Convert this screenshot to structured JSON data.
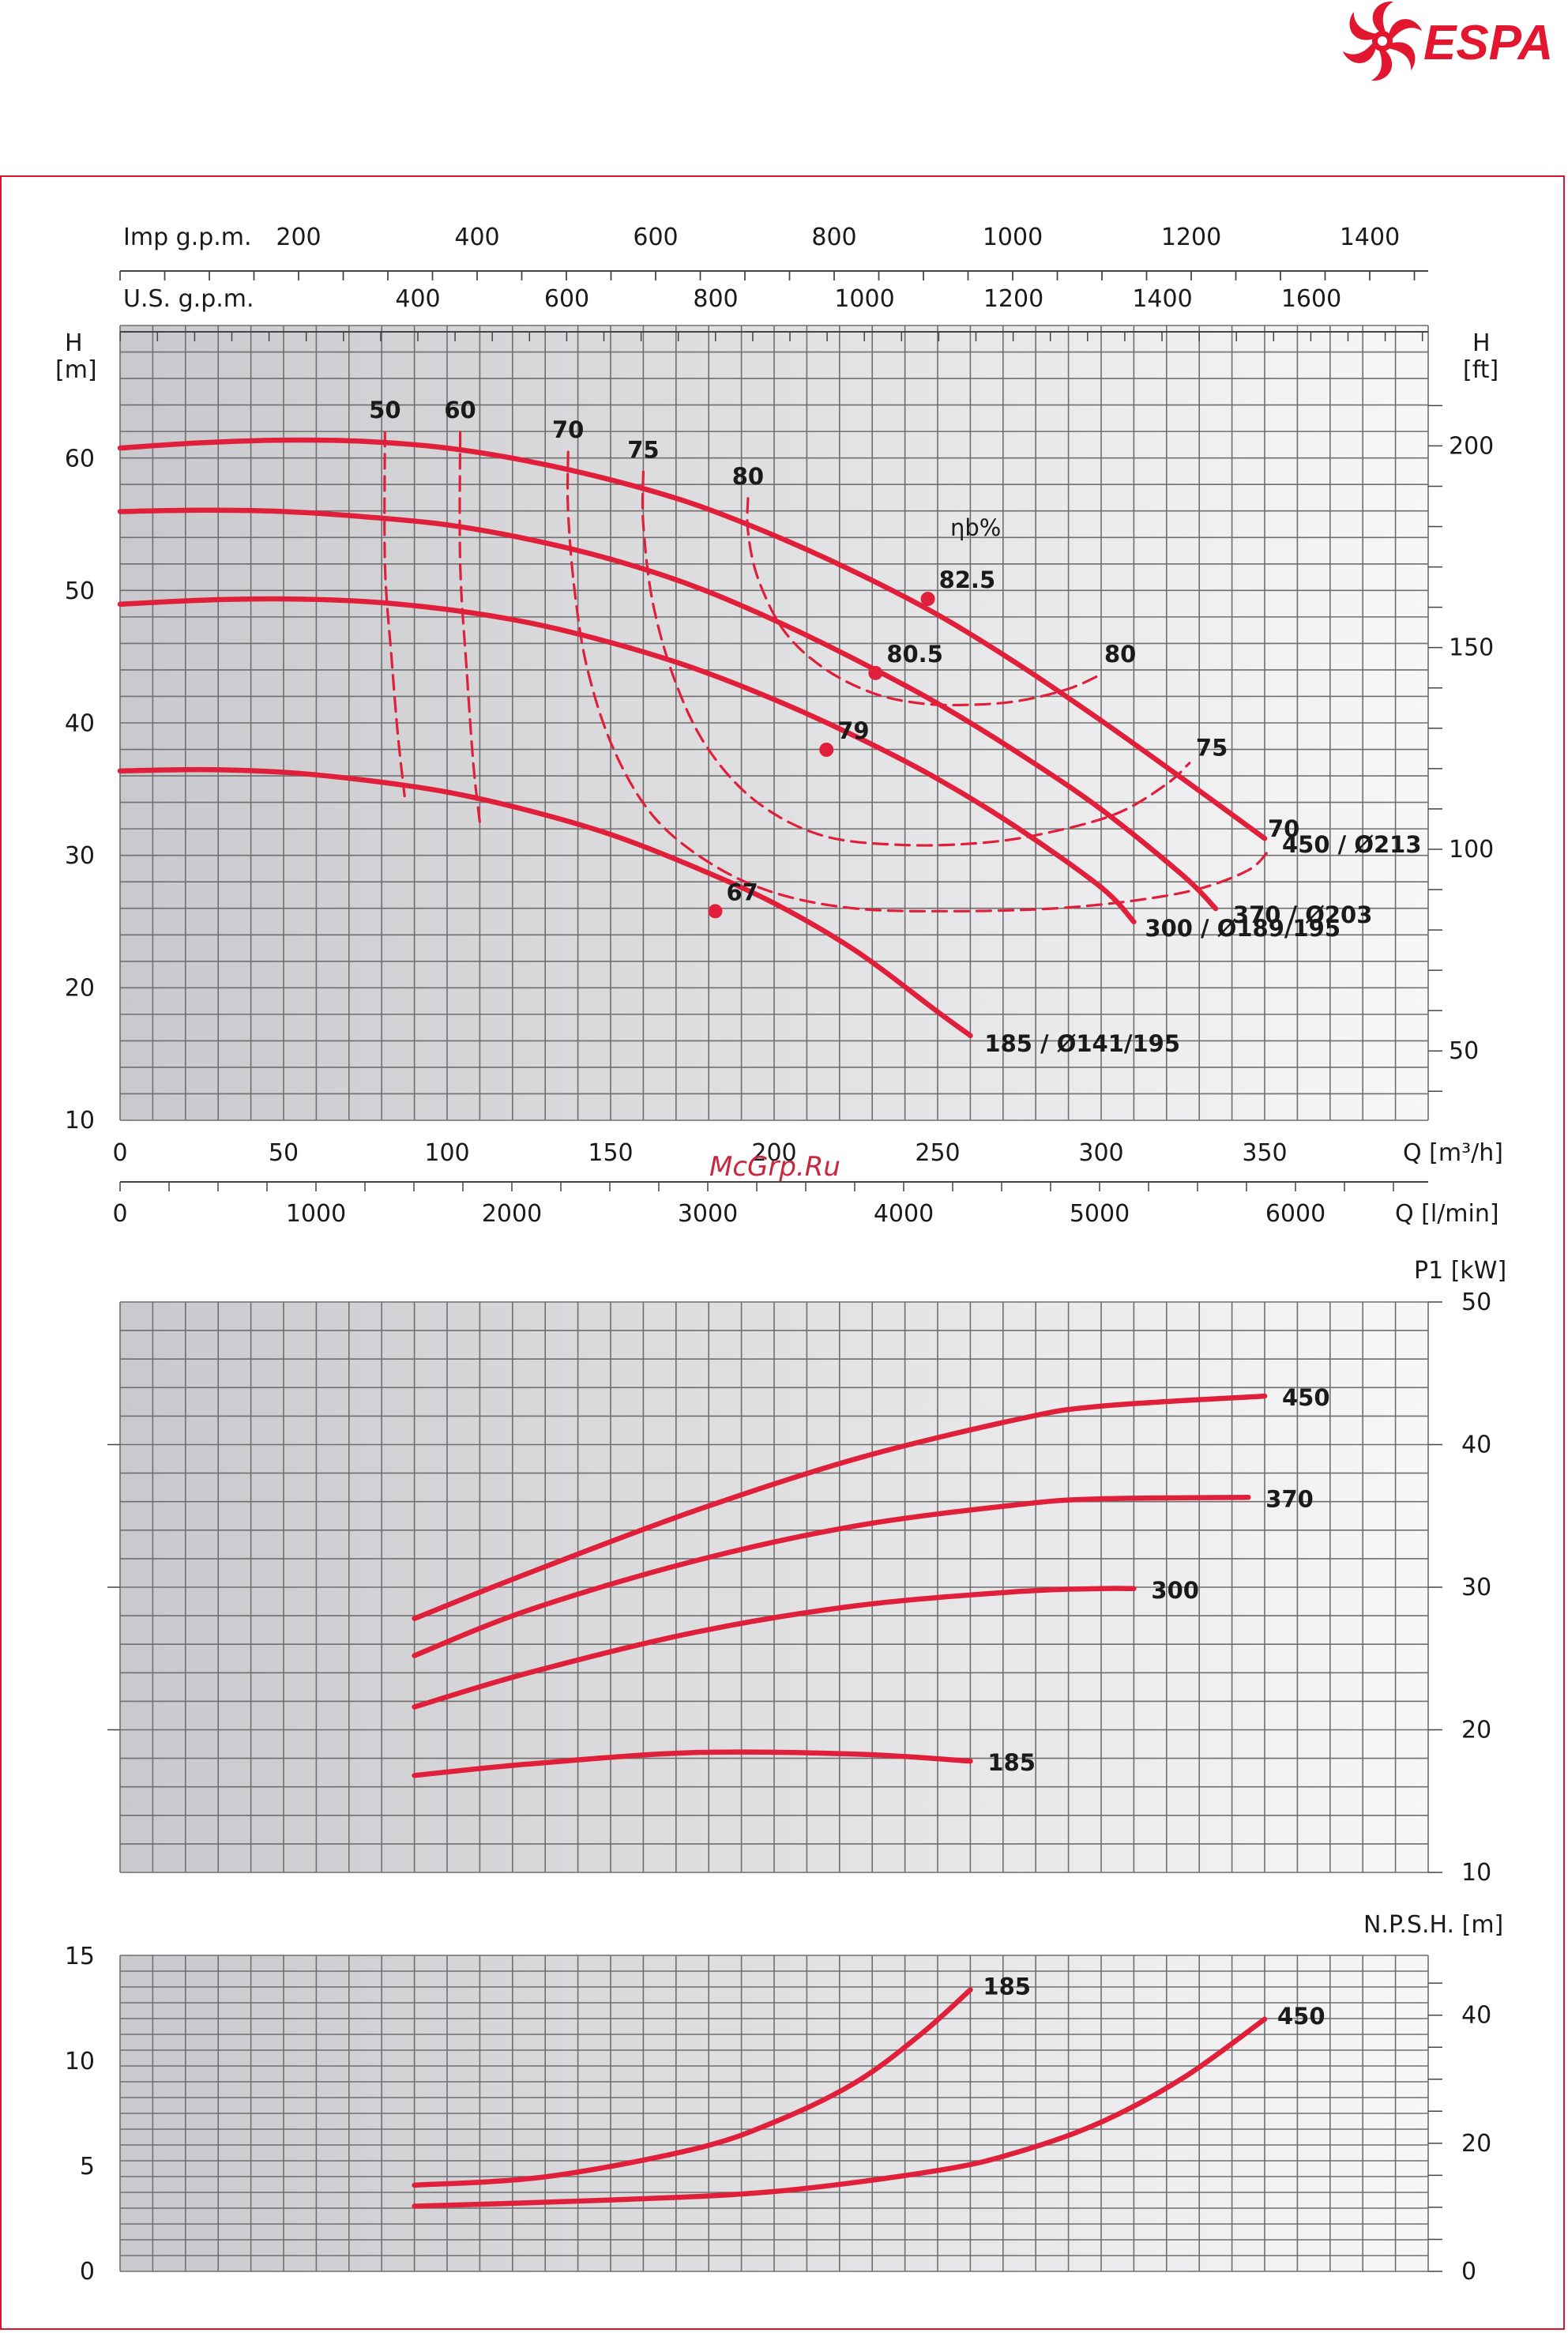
{
  "brand": {
    "name": "ESPA",
    "color": "#e2172f"
  },
  "watermark": "McGrp.Ru",
  "colors": {
    "curve": "#e0203a",
    "grid_line": "#6f6f6f",
    "frame": "#d7152e"
  },
  "chart_data": [
    {
      "type": "line",
      "name": "head",
      "xlabel": "Q [m³/h]",
      "xlim": [
        0,
        400
      ],
      "xticks": [
        "0",
        "50",
        "100",
        "150",
        "200",
        "250",
        "300",
        "350"
      ],
      "ylabel_left": "H [m]",
      "ylim": [
        10,
        65
      ],
      "yticks_left": [
        "10",
        "20",
        "30",
        "40",
        "50",
        "60"
      ],
      "ylabel_right": "H [ft]",
      "yticks_right": [
        "50",
        "100",
        "150",
        "200"
      ],
      "secondary_x_axes": [
        {
          "label": "Imp g.p.m.",
          "ticks": [
            "200",
            "400",
            "600",
            "800",
            "1000",
            "1200",
            "1400"
          ]
        },
        {
          "label": "U.S. g.p.m.",
          "ticks": [
            "400",
            "600",
            "800",
            "1000",
            "1200",
            "1400",
            "1600"
          ]
        },
        {
          "label": "Q [l/min]",
          "ticks": [
            "0",
            "1000",
            "2000",
            "3000",
            "4000",
            "5000",
            "6000"
          ]
        }
      ],
      "series": [
        {
          "name": "450 / Ø213",
          "x": [
            0,
            25,
            50,
            75,
            100,
            125,
            150,
            175,
            200,
            225,
            250,
            275,
            300,
            325,
            350
          ],
          "y": [
            60.8,
            61.2,
            61.4,
            61.3,
            60.8,
            59.8,
            58.4,
            56.6,
            54.2,
            51.4,
            48.2,
            44.4,
            40.2,
            35.8,
            31.3
          ]
        },
        {
          "name": "370 / Ø203",
          "x": [
            0,
            25,
            50,
            75,
            100,
            125,
            150,
            175,
            200,
            225,
            250,
            275,
            300,
            325,
            335
          ],
          "y": [
            56.0,
            56.1,
            56.0,
            55.6,
            55.0,
            53.9,
            52.4,
            50.4,
            47.8,
            44.8,
            41.5,
            37.7,
            33.5,
            28.5,
            26.0
          ]
        },
        {
          "name": "300 / Ø189/195",
          "x": [
            0,
            25,
            50,
            75,
            100,
            125,
            150,
            175,
            200,
            225,
            250,
            275,
            300,
            310
          ],
          "y": [
            49.0,
            49.3,
            49.4,
            49.2,
            48.6,
            47.6,
            46.1,
            44.2,
            41.8,
            39.0,
            35.8,
            32.0,
            27.6,
            25.0
          ]
        },
        {
          "name": "185 / Ø141/195",
          "x": [
            0,
            25,
            50,
            75,
            100,
            125,
            150,
            175,
            200,
            225,
            250,
            260
          ],
          "y": [
            36.4,
            36.5,
            36.3,
            35.7,
            34.8,
            33.4,
            31.6,
            29.2,
            26.4,
            22.8,
            18.2,
            16.4
          ]
        }
      ],
      "efficiency_title": "ηb%",
      "efficiency_curves": [
        {
          "label": "50",
          "x": [
            81,
            81,
            83,
            85,
            87
          ],
          "y": [
            62.0,
            52.0,
            45.0,
            39.0,
            34.5
          ]
        },
        {
          "label": "60",
          "x": [
            104,
            104,
            106,
            108,
            110
          ],
          "y": [
            62.0,
            52.0,
            44.0,
            37.0,
            32.5
          ]
        },
        {
          "label": "70",
          "x": [
            137,
            137,
            139,
            143,
            151,
            163,
            180,
            200,
            225,
            255,
            285,
            310,
            330,
            345,
            351
          ],
          "y": [
            60.5,
            56.0,
            50.0,
            44.0,
            38.0,
            33.0,
            29.5,
            27.2,
            26.0,
            25.8,
            26.0,
            26.6,
            27.5,
            28.9,
            30.3
          ]
        },
        {
          "label": "75",
          "x": [
            160,
            160,
            163,
            170,
            180,
            195,
            215,
            240,
            265,
            285,
            305,
            320,
            327
          ],
          "y": [
            59.0,
            55.0,
            49.0,
            43.0,
            38.0,
            34.0,
            31.5,
            30.8,
            31.0,
            31.8,
            33.2,
            35.4,
            37.0
          ]
        },
        {
          "label": "80",
          "x": [
            192,
            192,
            195,
            203,
            215,
            230,
            245,
            260,
            275,
            290,
            300
          ],
          "y": [
            57.0,
            54.5,
            51.0,
            47.0,
            44.2,
            42.3,
            41.5,
            41.4,
            41.7,
            42.6,
            43.7
          ]
        }
      ],
      "efficiency_labels_right": [
        {
          "label": "70",
          "x": 350,
          "y": 31.8
        },
        {
          "label": "75",
          "x": 328,
          "y": 37.9
        },
        {
          "label": "80",
          "x": 300,
          "y": 45.0
        }
      ],
      "best_efficiency_points": [
        {
          "label": "82.5",
          "x": 247,
          "y": 49.4
        },
        {
          "label": "80.5",
          "x": 231,
          "y": 43.8
        },
        {
          "label": "79",
          "x": 216,
          "y": 38.0
        },
        {
          "label": "67",
          "x": 182,
          "y": 25.8
        }
      ]
    },
    {
      "type": "line",
      "name": "power",
      "ylabel": "P1 [kW]",
      "xlim": [
        0,
        400
      ],
      "ylim": [
        10,
        50
      ],
      "yticks": [
        "10",
        "20",
        "30",
        "40",
        "50"
      ],
      "series": [
        {
          "name": "450",
          "x": [
            90,
            125,
            175,
            225,
            275,
            300,
            350
          ],
          "y": [
            27.8,
            31.0,
            35.3,
            39.0,
            41.8,
            42.7,
            43.4
          ]
        },
        {
          "name": "370",
          "x": [
            90,
            125,
            175,
            225,
            275,
            300,
            345
          ],
          "y": [
            25.2,
            28.4,
            31.8,
            34.3,
            35.8,
            36.2,
            36.3
          ]
        },
        {
          "name": "300",
          "x": [
            90,
            125,
            175,
            225,
            275,
            300,
            310
          ],
          "y": [
            21.6,
            24.0,
            26.8,
            28.7,
            29.7,
            29.9,
            29.9
          ]
        },
        {
          "name": "185",
          "x": [
            90,
            125,
            175,
            225,
            260
          ],
          "y": [
            16.8,
            17.6,
            18.4,
            18.3,
            17.8
          ]
        }
      ]
    },
    {
      "type": "line",
      "name": "npsh",
      "ylabel": "N.P.S.H. [m]",
      "xlim": [
        0,
        400
      ],
      "ylim_left": [
        0,
        15
      ],
      "yticks_left": [
        "0",
        "5",
        "10",
        "15"
      ],
      "yticks_right": [
        "0",
        "20",
        "40"
      ],
      "series": [
        {
          "name": "185",
          "x": [
            90,
            130,
            175,
            200,
            225,
            245,
            260
          ],
          "y": [
            4.1,
            4.5,
            5.8,
            7.1,
            9.0,
            11.3,
            13.4
          ]
        },
        {
          "name": "450",
          "x": [
            90,
            150,
            200,
            250,
            275,
            300,
            325,
            350
          ],
          "y": [
            3.1,
            3.4,
            3.8,
            4.8,
            5.7,
            7.1,
            9.2,
            12.0
          ]
        }
      ]
    }
  ]
}
